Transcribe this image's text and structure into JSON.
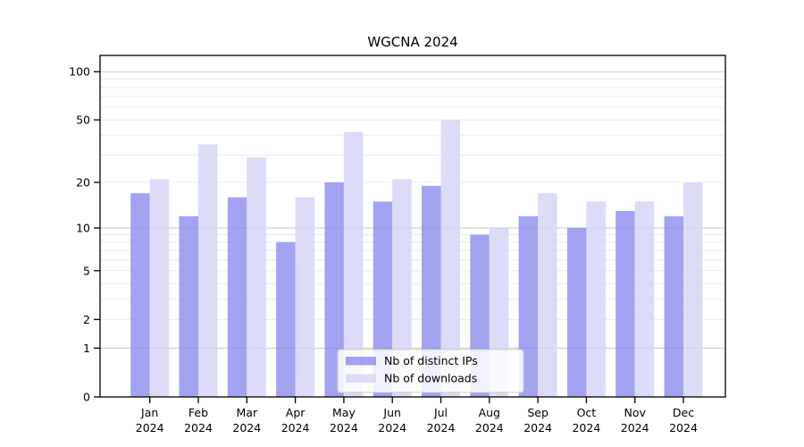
{
  "chart_data": {
    "type": "bar",
    "title": "WGCNA 2024",
    "scale": "log1p",
    "grid": true,
    "legend_position": "bottom-center",
    "categories": [
      "Jan 2024",
      "Feb 2024",
      "Mar 2024",
      "Apr 2024",
      "May 2024",
      "Jun 2024",
      "Jul 2024",
      "Aug 2024",
      "Sep 2024",
      "Oct 2024",
      "Nov 2024",
      "Dec 2024"
    ],
    "series": [
      {
        "name": "Nb of distinct IPs",
        "color": "#8f8fee",
        "values": [
          17,
          12,
          16,
          8,
          20,
          15,
          19,
          9,
          12,
          10,
          13,
          12
        ]
      },
      {
        "name": "Nb of downloads",
        "color": "#d4d4f7",
        "values": [
          21,
          35,
          29,
          16,
          42,
          21,
          50,
          10,
          17,
          15,
          15,
          20
        ]
      }
    ],
    "y_ticks": [
      0,
      1,
      2,
      5,
      10,
      20,
      50,
      100
    ],
    "gridline_values": [
      1,
      2,
      3,
      4,
      5,
      6,
      7,
      8,
      9,
      10,
      20,
      30,
      40,
      50,
      60,
      70,
      80,
      90,
      100
    ],
    "decade_gridlines": [
      1,
      10,
      100
    ],
    "ylim": [
      0,
      126
    ],
    "xlabel": "",
    "ylabel": ""
  },
  "colors": {
    "background": "#ffffff",
    "spine": "#000000",
    "grid_minor": "#ebebeb",
    "grid_decade": "#c8c8c8",
    "legend_border": "#cccccc",
    "legend_bg": "#ffffff",
    "text": "#000000"
  }
}
